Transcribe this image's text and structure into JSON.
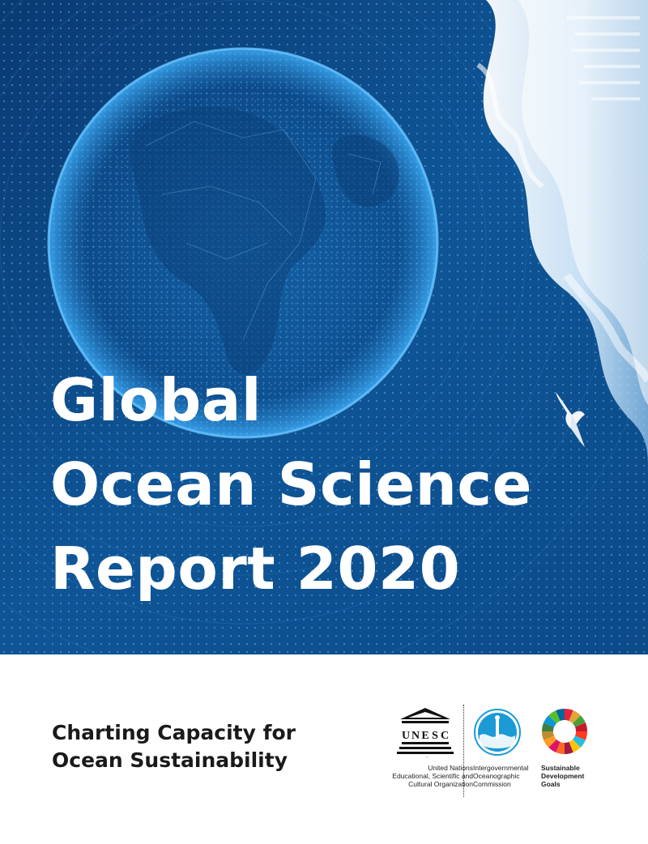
{
  "cover": {
    "title_lines": [
      "Global",
      "Ocean Science",
      "Report 2020"
    ],
    "subtitle_lines": [
      "Charting Capacity for",
      "Ocean Sustainability"
    ]
  },
  "logos": {
    "unesco": {
      "wordmark": "UNESCO",
      "name_lines": [
        "United Nations",
        "Educational, Scientific and",
        "Cultural Organization"
      ]
    },
    "ioc": {
      "name_lines": [
        "Intergovernmental",
        "Oceanographic",
        "Commission"
      ]
    },
    "sdg": {
      "name_lines": [
        "Sustainable",
        "Development",
        "Goals"
      ]
    }
  },
  "colors": {
    "hero_blue": "#0f4a86",
    "title_text": "#ffffff",
    "subtitle_text": "#1a1a1a",
    "ioc_blue": "#1b9ad6"
  }
}
